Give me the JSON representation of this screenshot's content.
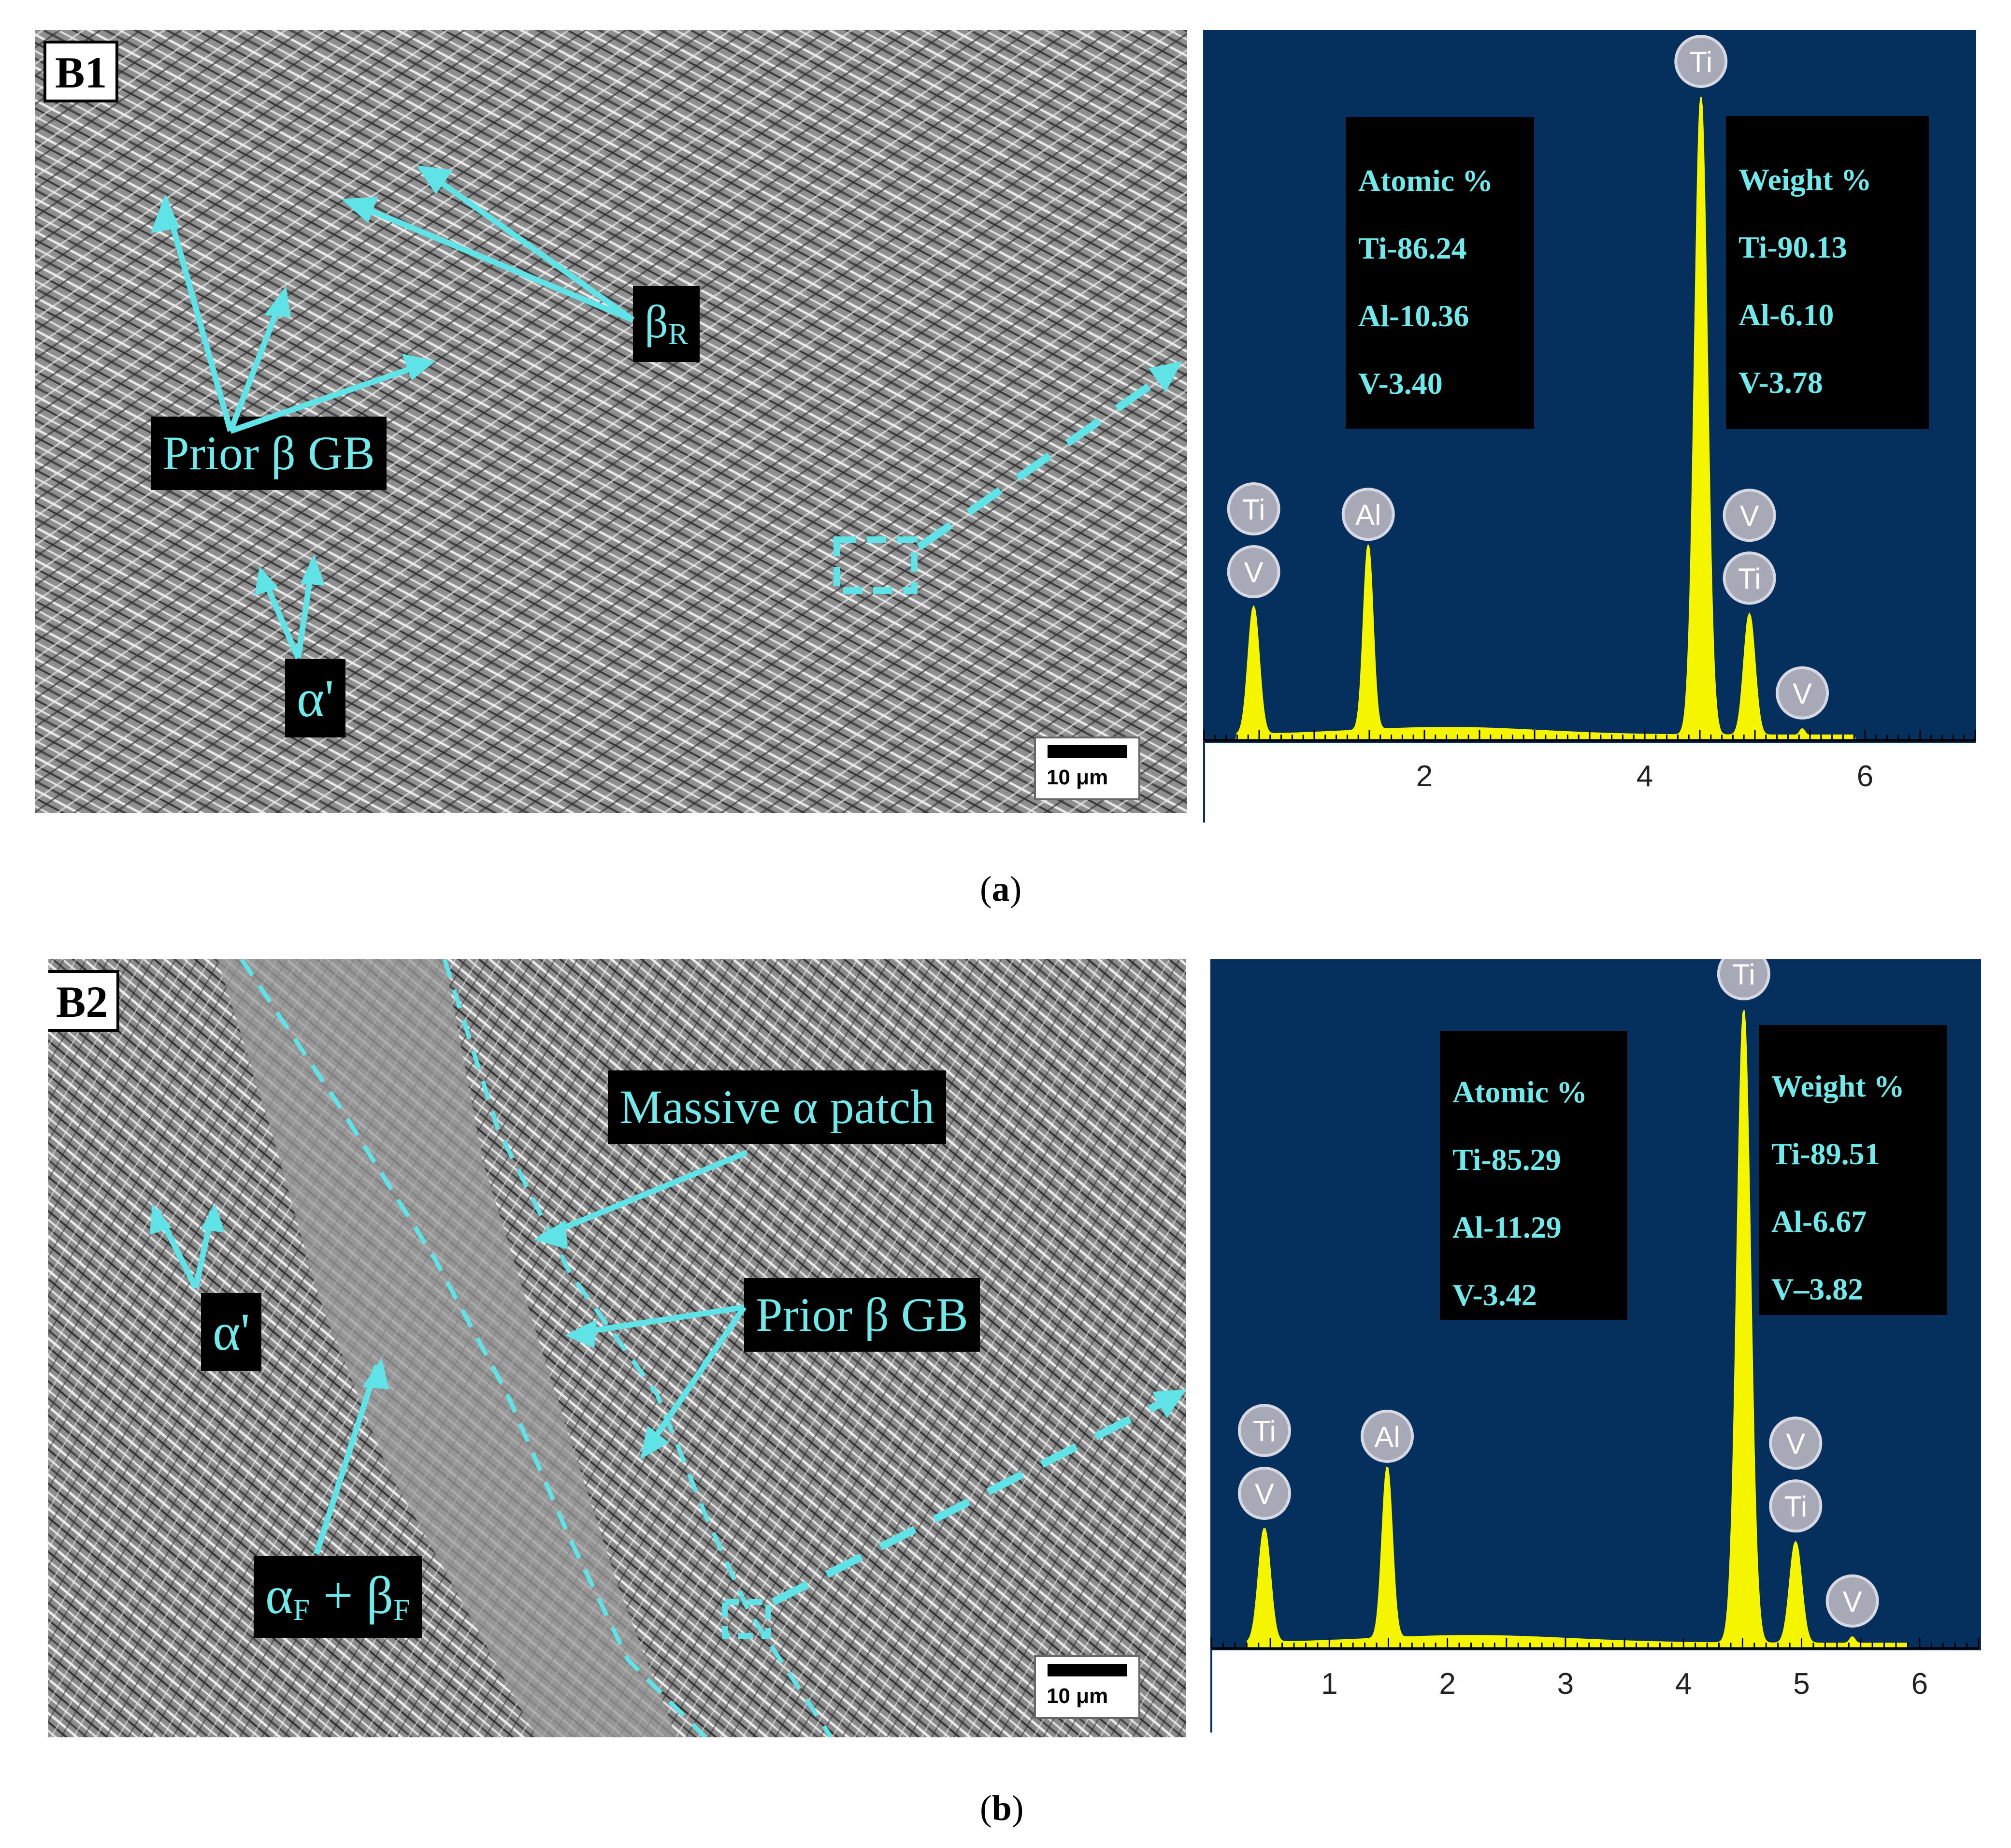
{
  "panels": [
    {
      "id": "a",
      "caption_letter": "a",
      "micrograph": {
        "tag": "B1",
        "scale_label": "10 μm",
        "labels": {
          "beta_r": "β",
          "beta_r_sub": "R",
          "prior_gb": "Prior β GB",
          "alpha_prime": "α'"
        }
      },
      "eds": {
        "atomic": {
          "title": "Atomic %",
          "ti": "Ti-86.24",
          "al": "Al-10.36",
          "v": "V-3.40"
        },
        "weight": {
          "title": "Weight %",
          "ti": "Ti-90.13",
          "al": "Al-6.10",
          "v": "V-3.78"
        }
      }
    },
    {
      "id": "b",
      "caption_letter": "b",
      "micrograph": {
        "tag": "B2",
        "scale_label": "10 μm",
        "labels": {
          "massive": "Massive α patch",
          "prior_gb": "Prior β GB",
          "alpha_prime": "α'",
          "af_bf_a": "α",
          "af_bf_sub1": "F",
          "af_bf_plus": " + β",
          "af_bf_sub2": "F"
        }
      },
      "eds": {
        "atomic": {
          "title": "Atomic %",
          "ti": "Ti-85.29",
          "al": "Al-11.29",
          "v": "V-3.42"
        },
        "weight": {
          "title": "Weight %",
          "ti": "Ti-89.51",
          "al": "Al-6.67",
          "v": "V–3.82"
        }
      }
    }
  ],
  "chart_data": [
    {
      "type": "line",
      "panel": "a",
      "xlabel": "",
      "ylabel": "",
      "xlim": [
        0.0,
        7.0
      ],
      "xticks": [
        2,
        4,
        6
      ],
      "grid": false,
      "background": "#05305e",
      "line_color": "#f5f500",
      "peaks": [
        {
          "x": 0.45,
          "height": 0.2,
          "labels": [
            "Ti",
            "V"
          ]
        },
        {
          "x": 1.49,
          "height": 0.29,
          "labels": [
            "Al"
          ]
        },
        {
          "x": 4.51,
          "height": 1.0,
          "labels": [
            "Ti"
          ]
        },
        {
          "x": 4.95,
          "height": 0.19,
          "labels": [
            "V",
            "Ti"
          ]
        },
        {
          "x": 5.43,
          "height": 0.01,
          "labels": [
            "V"
          ]
        }
      ]
    },
    {
      "type": "line",
      "panel": "b",
      "xlabel": "",
      "ylabel": "",
      "xlim": [
        0.0,
        6.5
      ],
      "xticks": [
        1,
        2,
        3,
        4,
        5,
        6
      ],
      "grid": false,
      "background": "#05305e",
      "line_color": "#f5f500",
      "peaks": [
        {
          "x": 0.45,
          "height": 0.18,
          "labels": [
            "Ti",
            "V"
          ]
        },
        {
          "x": 1.49,
          "height": 0.27,
          "labels": [
            "Al"
          ]
        },
        {
          "x": 4.51,
          "height": 1.0,
          "labels": [
            "Ti"
          ]
        },
        {
          "x": 4.95,
          "height": 0.16,
          "labels": [
            "V",
            "Ti"
          ]
        },
        {
          "x": 5.43,
          "height": 0.01,
          "labels": [
            "V"
          ]
        }
      ]
    }
  ]
}
